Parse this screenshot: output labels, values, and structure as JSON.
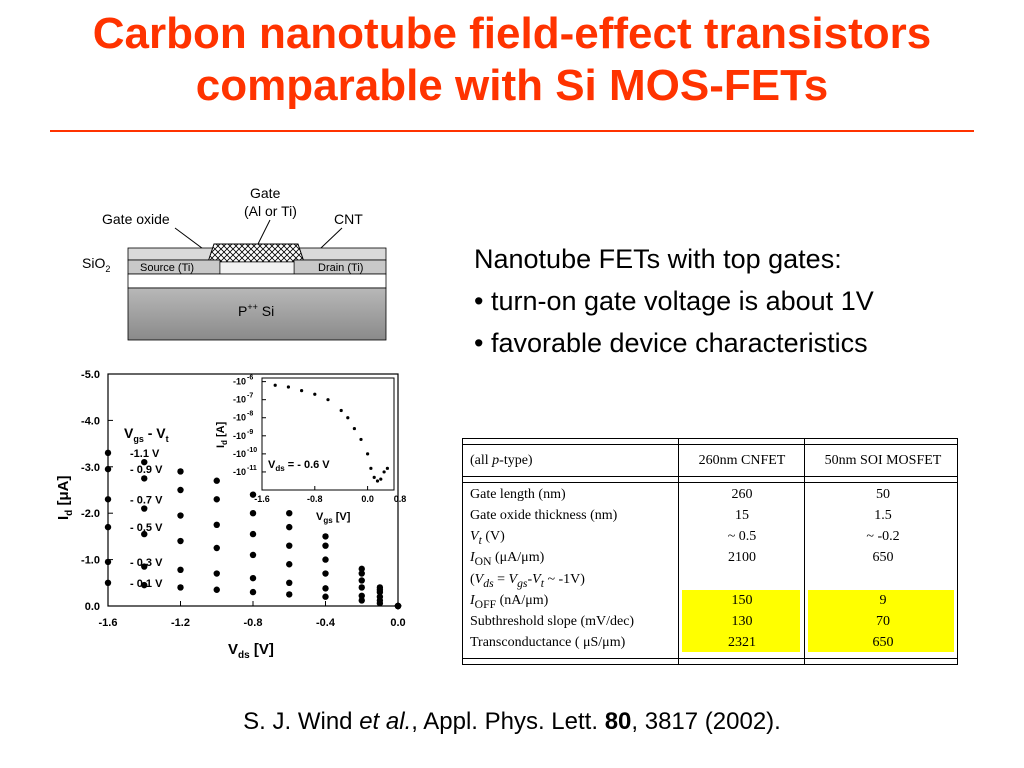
{
  "title": {
    "line1": "Carbon nanotube field-effect transistors",
    "line2": "comparable with Si MOS-FETs"
  },
  "device_diagram": {
    "gate": "Gate",
    "gate_material": "(Al or Ti)",
    "gate_oxide": "Gate oxide",
    "cnt": "CNT",
    "sio2": "SiO",
    "sio2_sub": "2",
    "source": "Source (Ti)",
    "drain": "Drain (Ti)",
    "substrate_p": "P",
    "substrate_sup": "++",
    "substrate_si": "Si"
  },
  "bullets": {
    "heading": "Nanotube FETs with top gates:",
    "items": [
      "• turn-on gate voltage is about 1V",
      "• favorable device characteristics"
    ]
  },
  "chart_data": [
    {
      "type": "scatter",
      "xlabel": "V",
      "xlabel_sub": "ds",
      "xlabel_unit": "[V]",
      "ylabel": "I",
      "ylabel_sub": "d",
      "ylabel_unit": "[μA]",
      "xlim": [
        -1.6,
        0.0
      ],
      "ylim": [
        0.0,
        -5.0
      ],
      "xticks": [
        "-1.6",
        "-1.2",
        "-0.8",
        "-0.4",
        "0.0"
      ],
      "yticks": [
        "-5.0",
        "-4.0",
        "-3.0",
        "-2.0",
        "-1.0",
        "0.0"
      ],
      "legend_title": "V",
      "legend_title_sub": "gs",
      "legend_title_tail": "- V",
      "legend_title_sub2": "t",
      "series": [
        {
          "name": "-1.1 V",
          "x": [
            -1.6,
            -1.4,
            -1.2,
            -1.0,
            -0.8,
            -0.6,
            -0.4,
            -0.2,
            -0.1,
            0.0
          ],
          "y": [
            -3.3,
            -3.1,
            -2.9,
            -2.7,
            -2.4,
            -2.0,
            -1.5,
            -0.8,
            -0.4,
            0.0
          ]
        },
        {
          "name": "- 0.9 V",
          "x": [
            -1.6,
            -1.4,
            -1.2,
            -1.0,
            -0.8,
            -0.6,
            -0.4,
            -0.2,
            -0.1,
            0.0
          ],
          "y": [
            -2.95,
            -2.75,
            -2.5,
            -2.3,
            -2.0,
            -1.7,
            -1.3,
            -0.7,
            -0.35,
            0.0
          ]
        },
        {
          "name": "- 0.7 V",
          "x": [
            -1.6,
            -1.4,
            -1.2,
            -1.0,
            -0.8,
            -0.6,
            -0.4,
            -0.2,
            -0.1,
            0.0
          ],
          "y": [
            -2.3,
            -2.1,
            -1.95,
            -1.75,
            -1.55,
            -1.3,
            -1.0,
            -0.55,
            -0.3,
            0.0
          ]
        },
        {
          "name": "- 0.5 V",
          "x": [
            -1.6,
            -1.4,
            -1.2,
            -1.0,
            -0.8,
            -0.6,
            -0.4,
            -0.2,
            -0.1,
            0.0
          ],
          "y": [
            -1.7,
            -1.55,
            -1.4,
            -1.25,
            -1.1,
            -0.9,
            -0.7,
            -0.4,
            -0.2,
            0.0
          ]
        },
        {
          "name": "- 0.3 V",
          "x": [
            -1.6,
            -1.4,
            -1.2,
            -1.0,
            -0.8,
            -0.6,
            -0.4,
            -0.2,
            -0.1,
            0.0
          ],
          "y": [
            -0.95,
            -0.85,
            -0.78,
            -0.7,
            -0.6,
            -0.5,
            -0.38,
            -0.22,
            -0.12,
            0.0
          ]
        },
        {
          "name": "- 0.1 V",
          "x": [
            -1.6,
            -1.4,
            -1.2,
            -1.0,
            -0.8,
            -0.6,
            -0.4,
            -0.2,
            -0.1,
            0.0
          ],
          "y": [
            -0.5,
            -0.45,
            -0.4,
            -0.35,
            -0.3,
            -0.25,
            -0.2,
            -0.12,
            -0.06,
            0.0
          ]
        }
      ]
    },
    {
      "type": "scatter",
      "xlabel": "V",
      "xlabel_sub": "gs",
      "xlabel_unit": "[V]",
      "ylabel": "I",
      "ylabel_sub": "d",
      "ylabel_unit": "[A]",
      "xlim": [
        -1.6,
        0.4
      ],
      "xticks": [
        "-1.6",
        "-0.8",
        "0.0",
        "0.8"
      ],
      "yticks": [
        "-10",
        "-10",
        "-10",
        "-10",
        "-10",
        "-10",
        "-10"
      ],
      "ytick_exponents": [
        "-6",
        "-7",
        "-8",
        "-9",
        "-10",
        "-11",
        ""
      ],
      "annotation": "V",
      "annotation_sub": "ds",
      "annotation_tail": "= - 0.6 V",
      "x": [
        -1.4,
        -1.2,
        -1.0,
        -0.8,
        -0.6,
        -0.4,
        -0.3,
        -0.2,
        -0.1,
        0.0,
        0.05,
        0.1,
        0.15,
        0.2,
        0.25,
        0.3
      ],
      "y": [
        -6.2,
        -6.3,
        -6.5,
        -6.7,
        -7.0,
        -7.6,
        -8.0,
        -8.6,
        -9.2,
        -10.0,
        -10.8,
        -11.3,
        -11.5,
        -11.4,
        -11.0,
        -10.8
      ]
    }
  ],
  "table": {
    "headers": [
      "(all p-type)",
      "260nm CNFET",
      "50nm SOI MOSFET"
    ],
    "header_italic_p": "p",
    "rows": [
      {
        "label": "Gate length (nm)",
        "cnfet": "260",
        "mosfet": "50"
      },
      {
        "label": "Gate oxide thickness (nm)",
        "cnfet": "15",
        "mosfet": "1.5"
      },
      {
        "label_main": "V",
        "label_sub": "t",
        "label_tail": " (V)",
        "cnfet": "~ 0.5",
        "mosfet": "~ -0.2"
      },
      {
        "label_main": "I",
        "label_sub": "ON",
        "label_tail": " (μA/μm)",
        "cnfet": "2100",
        "mosfet": "650"
      },
      {
        "label_main": "(V",
        "label_sub": "ds",
        "label_tail": " = V",
        "label_sub2": "gs",
        "label_tail2": "-V",
        "label_sub3": "t",
        "label_tail3": " ~ -1V)",
        "cnfet": "",
        "mosfet": ""
      },
      {
        "label_main": "I",
        "label_sub": "OFF",
        "label_tail": " (nA/μm)",
        "cnfet": "150",
        "mosfet": "9"
      },
      {
        "label": "Subthreshold slope (mV/dec)",
        "cnfet": "130",
        "mosfet": "70"
      },
      {
        "label": "Transconductance ( μS/μm)",
        "cnfet": "2321",
        "mosfet": "650"
      }
    ],
    "highlight_color": "#ffff00"
  },
  "citation": {
    "authors": "S. J. Wind ",
    "etal": "et al.",
    "journal": ", Appl. Phys. Lett. ",
    "volume": "80",
    "tail": ", 3817 (2002)."
  },
  "colors": {
    "title": "#ff3300",
    "highlight": "#ffff00"
  }
}
